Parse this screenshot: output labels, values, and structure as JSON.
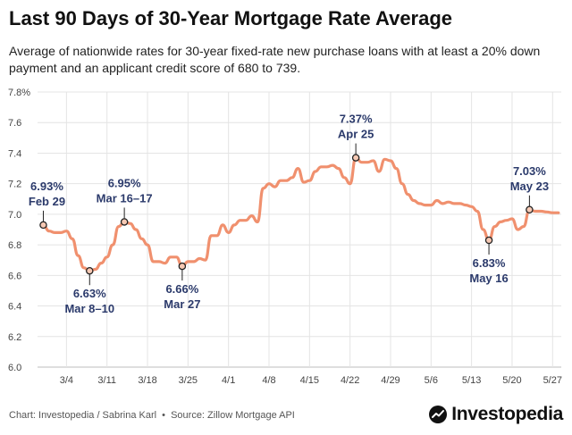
{
  "header": {
    "title": "Last 90 Days of 30-Year Mortgage Rate Average",
    "subtitle": "Average of nationwide rates for 30-year fixed-rate new purchase loans with at least a 20% down payment and an applicant credit score of 680 to 739."
  },
  "footer": {
    "chart_credit": "Chart: Investopedia / Sabrina Karl",
    "separator": "•",
    "source": "Source: Zillow Mortgage API",
    "brand": "Investopedia"
  },
  "colors": {
    "line": "#f0906e",
    "annotation_text": "#2b3a6b",
    "grid": "#e4e4e4",
    "marker_fill": "#f6c9b4"
  },
  "chart_data": {
    "type": "line",
    "title": "Last 90 Days of 30-Year Mortgage Rate Average",
    "xlabel": "",
    "ylabel": "",
    "ylim": [
      6.0,
      7.8
    ],
    "y_ticks": [
      6.0,
      6.2,
      6.4,
      6.6,
      6.8,
      7.0,
      7.2,
      7.4,
      7.6,
      7.8
    ],
    "y_tick_labels": [
      "6.0",
      "6.2",
      "6.4",
      "6.6",
      "6.8",
      "7.0",
      "7.2",
      "7.4",
      "7.6",
      "7.8%"
    ],
    "x_ticks": [
      {
        "day": 4,
        "label": "3/4"
      },
      {
        "day": 11,
        "label": "3/11"
      },
      {
        "day": 18,
        "label": "3/18"
      },
      {
        "day": 25,
        "label": "3/25"
      },
      {
        "day": 32,
        "label": "4/1"
      },
      {
        "day": 39,
        "label": "4/8"
      },
      {
        "day": 46,
        "label": "4/15"
      },
      {
        "day": 53,
        "label": "4/22"
      },
      {
        "day": 60,
        "label": "4/29"
      },
      {
        "day": 67,
        "label": "5/6"
      },
      {
        "day": 74,
        "label": "5/13"
      },
      {
        "day": 81,
        "label": "5/20"
      },
      {
        "day": 88,
        "label": "5/27"
      }
    ],
    "x_range": [
      -1,
      89.5
    ],
    "grid": true,
    "series": [
      {
        "name": "30-Year Mortgage Rate Average",
        "x": [
          0,
          1,
          2,
          3,
          4,
          5,
          6,
          7,
          8,
          9,
          10,
          11,
          12,
          13,
          14,
          15,
          16,
          17,
          18,
          19,
          20,
          21,
          22,
          23,
          24,
          25,
          26,
          27,
          28,
          29,
          30,
          31,
          32,
          33,
          34,
          35,
          36,
          37,
          38,
          39,
          40,
          41,
          42,
          43,
          44,
          45,
          46,
          47,
          48,
          49,
          50,
          51,
          52,
          53,
          54,
          55,
          56,
          57,
          58,
          59,
          60,
          61,
          62,
          63,
          64,
          65,
          66,
          67,
          68,
          69,
          70,
          71,
          72,
          73,
          74,
          75,
          76,
          77,
          78,
          79,
          80,
          81,
          82,
          83,
          84,
          85,
          86,
          87,
          88,
          89
        ],
        "values": [
          6.93,
          6.89,
          6.88,
          6.88,
          6.89,
          6.84,
          6.73,
          6.65,
          6.63,
          6.64,
          6.68,
          6.72,
          6.8,
          6.92,
          6.95,
          6.94,
          6.9,
          6.84,
          6.8,
          6.69,
          6.69,
          6.68,
          6.72,
          6.72,
          6.66,
          6.69,
          6.69,
          6.71,
          6.7,
          6.86,
          6.86,
          6.93,
          6.88,
          6.93,
          6.96,
          6.96,
          6.99,
          6.95,
          7.17,
          7.2,
          7.18,
          7.22,
          7.22,
          7.24,
          7.3,
          7.21,
          7.22,
          7.28,
          7.31,
          7.31,
          7.32,
          7.3,
          7.24,
          7.2,
          7.37,
          7.34,
          7.34,
          7.35,
          7.28,
          7.36,
          7.35,
          7.3,
          7.2,
          7.13,
          7.09,
          7.07,
          7.06,
          7.06,
          7.09,
          7.07,
          7.08,
          7.07,
          7.07,
          7.06,
          7.05,
          7.02,
          6.9,
          6.83,
          6.92,
          6.95,
          6.96,
          6.97,
          6.9,
          6.92,
          7.03,
          7.02,
          7.02,
          7.015,
          7.01,
          7.01
        ]
      }
    ],
    "annotations": [
      {
        "day": 0,
        "value": 6.93,
        "value_label": "6.93%",
        "date_label": "Feb 29",
        "position": "above"
      },
      {
        "day": 8,
        "value": 6.63,
        "value_label": "6.63%",
        "date_label": "Mar 8–10",
        "position": "below"
      },
      {
        "day": 14,
        "value": 6.95,
        "value_label": "6.95%",
        "date_label": "Mar 16–17",
        "position": "above"
      },
      {
        "day": 24,
        "value": 6.66,
        "value_label": "6.66%",
        "date_label": "Mar 27",
        "position": "below"
      },
      {
        "day": 54,
        "value": 7.37,
        "value_label": "7.37%",
        "date_label": "Apr 25",
        "position": "above"
      },
      {
        "day": 77,
        "value": 6.83,
        "value_label": "6.83%",
        "date_label": "May 16",
        "position": "below"
      },
      {
        "day": 84,
        "value": 7.03,
        "value_label": "7.03%",
        "date_label": "May 23",
        "position": "above"
      }
    ]
  }
}
